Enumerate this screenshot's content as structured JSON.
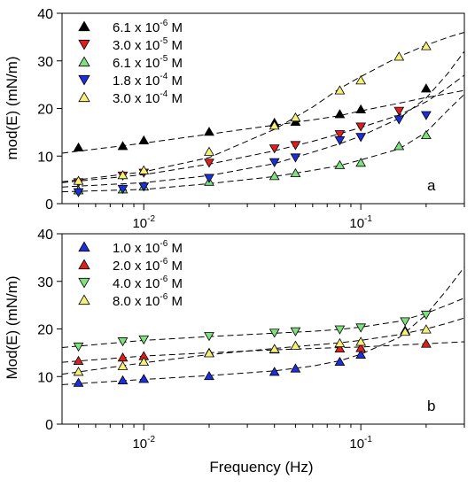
{
  "colors": {
    "black": "#000000",
    "red": "#dd1f1f",
    "green": "#7ee07e",
    "blue": "#1f2fd8",
    "yellow": "#f4f07a"
  },
  "chart_data": [
    {
      "type": "scatter",
      "panel_label": "a",
      "title": "",
      "xlabel": "",
      "ylabel": "mod(E) (mN/m)",
      "x_scale": "log",
      "xlim": [
        0.0042,
        0.3
      ],
      "ylim": [
        0,
        40
      ],
      "y_ticks": [
        "0",
        "10",
        "20",
        "30",
        "40"
      ],
      "x_tick_labels": [
        {
          "value": 0.01,
          "base": "10",
          "exp": "-2"
        },
        {
          "value": 0.1,
          "base": "10",
          "exp": "-1"
        }
      ],
      "grid": false,
      "legend_position": "top-left",
      "series": [
        {
          "name": "6.1 x 10",
          "exp": "-6",
          "unit": " M",
          "marker": "triangle-up",
          "color": "#000000",
          "x": [
            0.005,
            0.008,
            0.01,
            0.02,
            0.04,
            0.05,
            0.08,
            0.1,
            0.2
          ],
          "y": [
            11.8,
            12.1,
            13.3,
            15.1,
            17.0,
            17.2,
            18.8,
            19.8,
            24.2
          ],
          "fit": {
            "x": [
              0.0042,
              0.01,
              0.02,
              0.04,
              0.06,
              0.08,
              0.1,
              0.15,
              0.2,
              0.25,
              0.3
            ],
            "y": [
              10.6,
              12.7,
              14.6,
              16.5,
              17.6,
              18.5,
              19.5,
              21.1,
              22.3,
              23.1,
              23.8
            ]
          }
        },
        {
          "name": "3.0 x 10",
          "exp": "-5",
          "unit": " M",
          "marker": "triangle-down",
          "color": "#dd1f1f",
          "x": [
            0.005,
            0.008,
            0.01,
            0.02,
            0.04,
            0.05,
            0.08,
            0.1,
            0.15
          ],
          "y": [
            4.5,
            5.9,
            6.5,
            8.6,
            11.6,
            12.3,
            14.6,
            16.2,
            19.5
          ],
          "fit": {
            "x": [
              0.0042,
              0.01,
              0.02,
              0.04,
              0.06,
              0.08,
              0.1,
              0.15,
              0.2,
              0.25,
              0.3
            ],
            "y": [
              4.4,
              6.1,
              8.3,
              11.1,
              13.1,
              14.7,
              16.0,
              18.6,
              21.4,
              24.3,
              27.0
            ]
          }
        },
        {
          "name": "6.1 x 10",
          "exp": "-5",
          "unit": " M",
          "marker": "triangle-up",
          "color": "#7ee07e",
          "x": [
            0.005,
            0.008,
            0.01,
            0.02,
            0.04,
            0.05,
            0.08,
            0.1,
            0.15,
            0.2
          ],
          "y": [
            2.8,
            3.0,
            3.6,
            4.6,
            5.8,
            6.4,
            8.1,
            8.6,
            12.1,
            14.4
          ],
          "fit": {
            "x": [
              0.0042,
              0.01,
              0.02,
              0.04,
              0.06,
              0.08,
              0.1,
              0.15,
              0.2,
              0.25,
              0.3
            ],
            "y": [
              2.5,
              3.0,
              4.2,
              5.7,
              7.0,
              8.0,
              9.2,
              11.5,
              15.0,
              19.5,
              23.0
            ]
          }
        },
        {
          "name": "1.8 x 10",
          "exp": "-4",
          "unit": " M",
          "marker": "triangle-down",
          "color": "#1f2fd8",
          "x": [
            0.005,
            0.008,
            0.01,
            0.02,
            0.04,
            0.05,
            0.08,
            0.1,
            0.15,
            0.2
          ],
          "y": [
            2.4,
            3.1,
            3.6,
            5.4,
            8.7,
            9.7,
            13.3,
            14.0,
            17.7,
            18.6
          ],
          "fit": {
            "x": [
              0.0042,
              0.01,
              0.02,
              0.04,
              0.06,
              0.08,
              0.1,
              0.15,
              0.2,
              0.25,
              0.3
            ],
            "y": [
              3.5,
              4.4,
              5.9,
              8.4,
              10.8,
              12.6,
              14.2,
              17.9,
              22.2,
              27.2,
              32.0
            ]
          }
        },
        {
          "name": "3.0 x 10",
          "exp": "-4",
          "unit": " M",
          "marker": "triangle-up",
          "color": "#f4f07a",
          "x": [
            0.005,
            0.008,
            0.01,
            0.02,
            0.04,
            0.05,
            0.08,
            0.1,
            0.15,
            0.2
          ],
          "y": [
            4.8,
            6.0,
            7.0,
            10.9,
            16.4,
            18.1,
            23.8,
            25.9,
            30.9,
            33.1
          ],
          "fit": {
            "x": [
              0.0042,
              0.01,
              0.02,
              0.04,
              0.06,
              0.08,
              0.1,
              0.15,
              0.2,
              0.25,
              0.3
            ],
            "y": [
              4.6,
              6.7,
              9.7,
              15.6,
              20.3,
              24.2,
              26.7,
              30.9,
              33.3,
              34.9,
              36.0
            ]
          }
        }
      ]
    },
    {
      "type": "scatter",
      "panel_label": "b",
      "title": "",
      "xlabel": "Frequency (Hz)",
      "ylabel": "Mod(E) (mN/m)",
      "x_scale": "log",
      "xlim": [
        0.0042,
        0.3
      ],
      "ylim": [
        0,
        40
      ],
      "y_ticks": [
        "0",
        "10",
        "20",
        "30",
        "40"
      ],
      "x_tick_labels": [
        {
          "value": 0.01,
          "base": "10",
          "exp": "-2"
        },
        {
          "value": 0.1,
          "base": "10",
          "exp": "-1"
        }
      ],
      "grid": false,
      "legend_position": "top-left",
      "series": [
        {
          "name": "1.0 x 10",
          "exp": "-6",
          "unit": " M",
          "marker": "triangle-up",
          "color": "#1f2fd8",
          "x": [
            0.005,
            0.008,
            0.01,
            0.02,
            0.04,
            0.05,
            0.08,
            0.1,
            0.16
          ],
          "y": [
            8.7,
            9.2,
            9.5,
            10.1,
            11.0,
            11.7,
            13.1,
            14.6,
            19.7
          ],
          "fit": {
            "x": [
              0.0042,
              0.01,
              0.02,
              0.04,
              0.06,
              0.08,
              0.1,
              0.15,
              0.2,
              0.25,
              0.3
            ],
            "y": [
              8.3,
              9.4,
              10.2,
              11.2,
              12.2,
              13.3,
              14.7,
              18.2,
              23.0,
              28.3,
              33.0
            ]
          }
        },
        {
          "name": "2.0 x 10",
          "exp": "-6",
          "unit": " M",
          "marker": "triangle-up",
          "color": "#dd1f1f",
          "x": [
            0.005,
            0.008,
            0.01,
            0.02,
            0.04,
            0.08,
            0.1,
            0.2
          ],
          "y": [
            13.3,
            14.0,
            14.3,
            15.0,
            15.7,
            15.9,
            16.0,
            16.9
          ],
          "fit": {
            "x": [
              0.0042,
              0.01,
              0.02,
              0.04,
              0.08,
              0.1,
              0.2,
              0.3
            ],
            "y": [
              13.0,
              14.3,
              15.0,
              15.6,
              16.1,
              16.2,
              16.9,
              17.3
            ]
          }
        },
        {
          "name": "4.0 x 10",
          "exp": "-6",
          "unit": " M",
          "marker": "triangle-down",
          "color": "#7ee07e",
          "x": [
            0.005,
            0.008,
            0.01,
            0.02,
            0.04,
            0.05,
            0.08,
            0.1,
            0.16,
            0.2
          ],
          "y": [
            16.3,
            17.4,
            17.8,
            18.5,
            19.2,
            19.5,
            19.9,
            20.3,
            21.6,
            23.0
          ],
          "fit": {
            "x": [
              0.0042,
              0.01,
              0.02,
              0.04,
              0.06,
              0.08,
              0.1,
              0.15,
              0.2,
              0.25,
              0.3
            ],
            "y": [
              16.1,
              17.6,
              18.4,
              19.1,
              19.5,
              19.9,
              20.4,
              21.6,
              23.3,
              25.0,
              26.5
            ]
          }
        },
        {
          "name": "8.0 x 10",
          "exp": "-6",
          "unit": " M",
          "marker": "triangle-up",
          "color": "#f4f07a",
          "x": [
            0.005,
            0.008,
            0.01,
            0.02,
            0.04,
            0.05,
            0.08,
            0.1,
            0.16,
            0.2
          ],
          "y": [
            11.0,
            12.2,
            13.1,
            14.9,
            15.8,
            16.5,
            17.0,
            17.3,
            19.4,
            19.9
          ],
          "fit": {
            "x": [
              0.0042,
              0.01,
              0.02,
              0.04,
              0.06,
              0.08,
              0.1,
              0.15,
              0.2,
              0.25,
              0.3
            ],
            "y": [
              10.5,
              12.9,
              14.6,
              15.9,
              16.6,
              17.1,
              17.6,
              18.8,
              20.0,
              21.2,
              22.3
            ]
          }
        }
      ]
    }
  ]
}
